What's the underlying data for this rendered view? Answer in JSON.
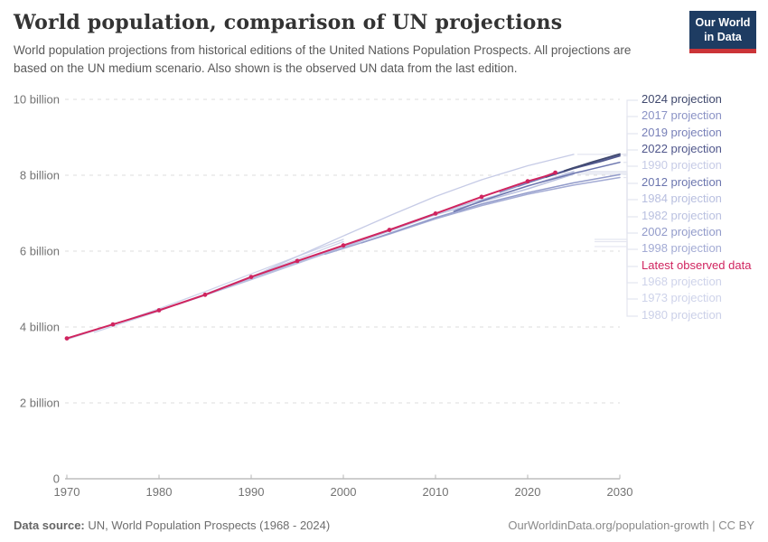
{
  "header": {
    "title": "World population, comparison of UN projections",
    "subtitle": "World population projections from historical editions of the United Nations Population Prospects. All projections are based on the UN medium scenario. Also shown is the observed UN data from the last edition."
  },
  "logo": {
    "line1": "Our World",
    "line2": "in Data",
    "bg": "#1e3c62",
    "accent": "#cb3438"
  },
  "footer": {
    "source_label": "Data source:",
    "source_value": " UN, World Population Prospects (1968 - 2024)",
    "attribution": "OurWorldinData.org/population-growth | CC BY"
  },
  "chart_data": {
    "type": "line",
    "title": "World population, comparison of UN projections",
    "xlabel": "",
    "ylabel": "",
    "xlim": [
      1970,
      2030
    ],
    "ylim": [
      0,
      10
    ],
    "grid": "horizontal-dashed",
    "legend_position": "right",
    "x_ticks": [
      1970,
      1980,
      1990,
      2000,
      2010,
      2020,
      2030
    ],
    "y_ticks": [
      {
        "value": 0,
        "label": "0"
      },
      {
        "value": 2,
        "label": "2 billion"
      },
      {
        "value": 4,
        "label": "4 billion"
      },
      {
        "value": 6,
        "label": "6 billion"
      },
      {
        "value": 8,
        "label": "8 billion"
      },
      {
        "value": 10,
        "label": "10 billion"
      }
    ],
    "series": [
      {
        "name": "1968 projection",
        "color": "#ced3ea",
        "width": 1.3,
        "points": [
          [
            1970,
            3.67
          ],
          [
            1975,
            4.06
          ],
          [
            1980,
            4.48
          ],
          [
            1985,
            4.93
          ],
          [
            1990,
            5.4
          ],
          [
            1995,
            5.86
          ],
          [
            2000,
            6.31
          ]
        ]
      },
      {
        "name": "1973 projection",
        "color": "#ced3ea",
        "width": 1.3,
        "points": [
          [
            1973,
            3.86
          ],
          [
            1980,
            4.42
          ],
          [
            1985,
            4.87
          ],
          [
            1990,
            5.33
          ],
          [
            1995,
            5.79
          ],
          [
            2000,
            6.25
          ]
        ]
      },
      {
        "name": "1980 projection",
        "color": "#cbd0e8",
        "width": 1.3,
        "points": [
          [
            1980,
            4.43
          ],
          [
            1985,
            4.84
          ],
          [
            1990,
            5.27
          ],
          [
            1995,
            5.69
          ],
          [
            2000,
            6.12
          ]
        ]
      },
      {
        "name": "1982 projection",
        "color": "#bac1e0",
        "width": 1.5,
        "points": [
          [
            1982,
            4.59
          ],
          [
            1990,
            5.25
          ],
          [
            2000,
            6.1
          ],
          [
            2010,
            6.96
          ],
          [
            2020,
            7.64
          ],
          [
            2025,
            8.03
          ]
        ]
      },
      {
        "name": "1984 projection",
        "color": "#b7bedf",
        "width": 1.5,
        "points": [
          [
            1984,
            4.76
          ],
          [
            1990,
            5.28
          ],
          [
            2000,
            6.12
          ],
          [
            2010,
            7.0
          ],
          [
            2020,
            7.71
          ],
          [
            2025,
            8.1
          ]
        ]
      },
      {
        "name": "1990 projection",
        "color": "#c6cbe6",
        "width": 1.3,
        "points": [
          [
            1990,
            5.32
          ],
          [
            1995,
            5.86
          ],
          [
            2000,
            6.4
          ],
          [
            2005,
            6.93
          ],
          [
            2010,
            7.44
          ],
          [
            2015,
            7.88
          ],
          [
            2020,
            8.25
          ],
          [
            2025,
            8.55
          ]
        ]
      },
      {
        "name": "1998 projection",
        "color": "#a3abd4",
        "width": 1.5,
        "points": [
          [
            1998,
            5.92
          ],
          [
            2005,
            6.45
          ],
          [
            2010,
            6.85
          ],
          [
            2015,
            7.2
          ],
          [
            2020,
            7.5
          ],
          [
            2025,
            7.74
          ],
          [
            2030,
            7.94
          ]
        ]
      },
      {
        "name": "2002 projection",
        "color": "#929bca",
        "width": 1.5,
        "points": [
          [
            2002,
            6.22
          ],
          [
            2010,
            6.88
          ],
          [
            2015,
            7.24
          ],
          [
            2020,
            7.54
          ],
          [
            2025,
            7.8
          ],
          [
            2030,
            8.02
          ]
        ]
      },
      {
        "name": "2012 projection",
        "color": "#6b75ae",
        "width": 1.5,
        "points": [
          [
            2012,
            7.05
          ],
          [
            2015,
            7.32
          ],
          [
            2020,
            7.72
          ],
          [
            2025,
            8.05
          ],
          [
            2030,
            8.34
          ]
        ]
      },
      {
        "name": "2017 projection",
        "color": "#8a92c5",
        "width": 1.5,
        "points": [
          [
            2017,
            7.55
          ],
          [
            2020,
            7.8
          ],
          [
            2024,
            8.1
          ],
          [
            2027,
            8.33
          ],
          [
            2030,
            8.55
          ]
        ]
      },
      {
        "name": "2019 projection",
        "color": "#7880b8",
        "width": 1.5,
        "points": [
          [
            2019,
            7.71
          ],
          [
            2022,
            7.96
          ],
          [
            2025,
            8.2
          ],
          [
            2030,
            8.54
          ]
        ]
      },
      {
        "name": "2022 projection",
        "color": "#4f568b",
        "width": 1.7,
        "points": [
          [
            2022,
            7.95
          ],
          [
            2025,
            8.18
          ],
          [
            2028,
            8.37
          ],
          [
            2030,
            8.51
          ]
        ]
      },
      {
        "name": "2024 projection",
        "color": "#3f486d",
        "width": 1.7,
        "points": [
          [
            2024,
            8.12
          ],
          [
            2027,
            8.35
          ],
          [
            2030,
            8.56
          ]
        ]
      },
      {
        "name": "Latest observed data",
        "color": "#d0245f",
        "width": 2,
        "points": [
          [
            1970,
            3.7
          ],
          [
            1975,
            4.07
          ],
          [
            1980,
            4.44
          ],
          [
            1985,
            4.85
          ],
          [
            1990,
            5.32
          ],
          [
            1995,
            5.74
          ],
          [
            2000,
            6.15
          ],
          [
            2005,
            6.56
          ],
          [
            2010,
            6.99
          ],
          [
            2015,
            7.43
          ],
          [
            2020,
            7.84
          ],
          [
            2021,
            7.91
          ],
          [
            2022,
            7.98
          ],
          [
            2023,
            8.07
          ]
        ],
        "dot_years": [
          1970,
          1975,
          1980,
          1985,
          1990,
          1995,
          2000,
          2005,
          2010,
          2015,
          2020,
          2023
        ]
      }
    ],
    "legend": [
      {
        "label": "2024 projection",
        "color": "#3f486d",
        "series": "2024 projection"
      },
      {
        "label": "2017 projection",
        "color": "#8a92c5",
        "series": "2017 projection"
      },
      {
        "label": "2019 projection",
        "color": "#7880b8",
        "series": "2019 projection"
      },
      {
        "label": "2022 projection",
        "color": "#4f568b",
        "series": "2022 projection"
      },
      {
        "label": "1990 projection",
        "color": "#c6cbe6",
        "series": "1990 projection"
      },
      {
        "label": "2012 projection",
        "color": "#6b75ae",
        "series": "2012 projection"
      },
      {
        "label": "1984 projection",
        "color": "#b7bedf",
        "series": "1984 projection"
      },
      {
        "label": "1982 projection",
        "color": "#bac1e0",
        "series": "1982 projection"
      },
      {
        "label": "2002 projection",
        "color": "#929bca",
        "series": "2002 projection"
      },
      {
        "label": "1998 projection",
        "color": "#a3abd4",
        "series": "1998 projection"
      },
      {
        "label": "Latest observed data",
        "color": "#d0245f",
        "series": "Latest observed data"
      },
      {
        "label": "1968 projection",
        "color": "#ced3ea",
        "series": "1968 projection"
      },
      {
        "label": "1973 projection",
        "color": "#ced3ea",
        "series": "1973 projection"
      },
      {
        "label": "1980 projection",
        "color": "#cbd0e8",
        "series": "1980 projection"
      }
    ]
  }
}
